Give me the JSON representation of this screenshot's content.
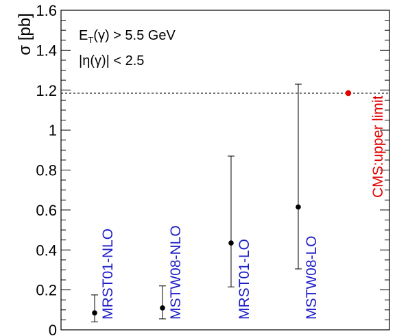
{
  "chart_data": {
    "type": "scatter",
    "ylabel": "σ [pb]",
    "ylim": [
      0,
      1.6
    ],
    "yticks": [
      "0",
      "0.2",
      "0.4",
      "0.6",
      "0.8",
      "1",
      "1.2",
      "1.4",
      "1.6"
    ],
    "annotations": {
      "line1": {
        "main": "E",
        "sub": "T",
        "rest": "(γ) > 5.5 GeV"
      },
      "line2": "|η(γ)| < 2.5"
    },
    "series": [
      {
        "name": "MRST01-NLO",
        "value": 0.085,
        "err_low": 0.04,
        "err_high": 0.175,
        "color": "#000000",
        "label_color": "#1e1ec8"
      },
      {
        "name": "MSTW08-NLO",
        "value": 0.11,
        "err_low": 0.055,
        "err_high": 0.22,
        "color": "#000000",
        "label_color": "#1e1ec8"
      },
      {
        "name": "MRST01-LO",
        "value": 0.435,
        "err_low": 0.215,
        "err_high": 0.87,
        "color": "#000000",
        "label_color": "#1e1ec8"
      },
      {
        "name": "MSTW08-LO",
        "value": 0.615,
        "err_low": 0.305,
        "err_high": 1.23,
        "color": "#000000",
        "label_color": "#1e1ec8"
      }
    ],
    "limit": {
      "name": "CMS:upper limit",
      "value": 1.185,
      "color": "#e00000"
    },
    "dashed_line_y": 1.185
  }
}
